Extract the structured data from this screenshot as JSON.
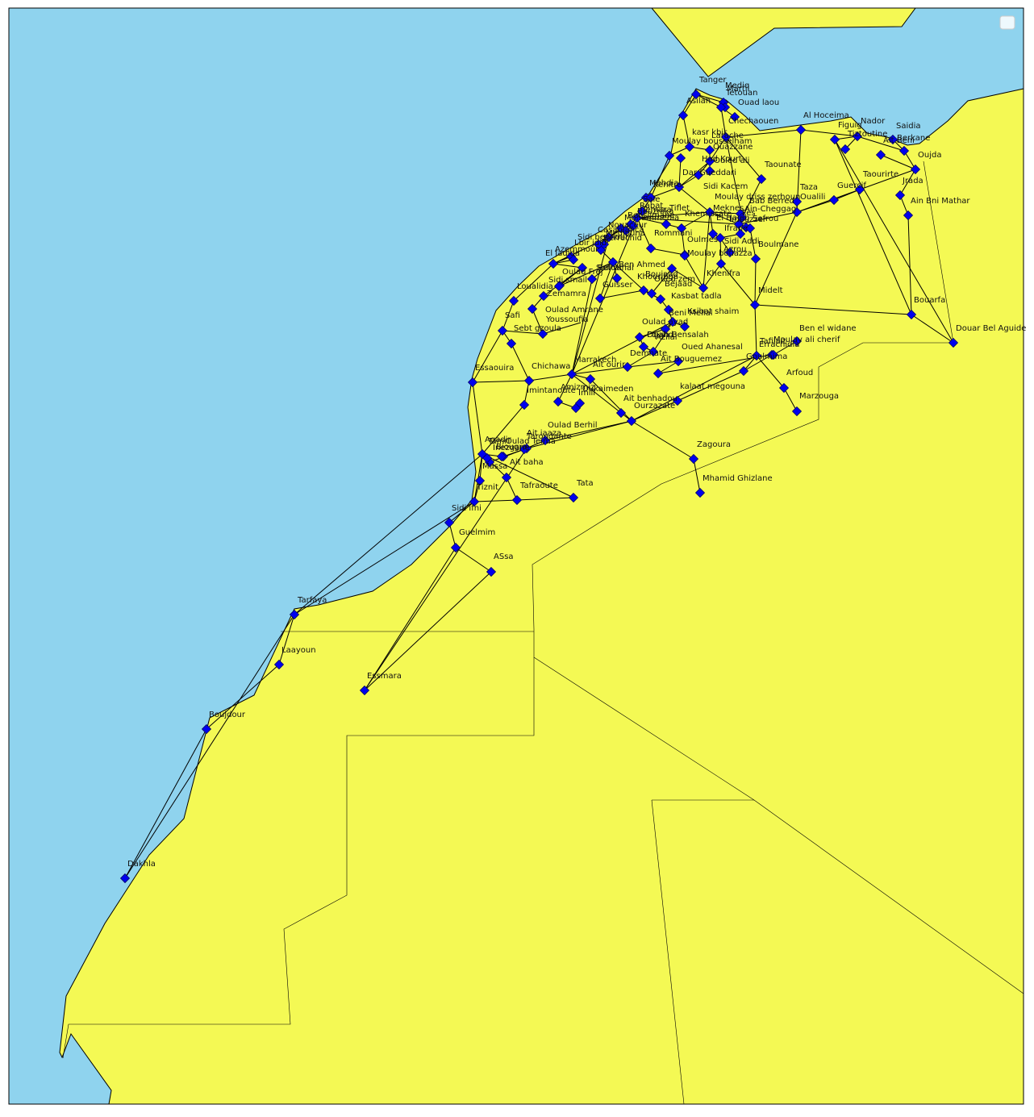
{
  "colors": {
    "sea": "#8fd3ee",
    "land": "#f4f954",
    "route": "#000000",
    "marker_fill": "#0000ee",
    "marker_stroke": "#000066",
    "border": "#000000"
  },
  "legend": {
    "visible": true,
    "entries": []
  },
  "cities": [
    {
      "id": "tanger",
      "name": "Tanger"
    },
    {
      "id": "mdiq",
      "name": "Mediq"
    },
    {
      "id": "martil",
      "name": "Martil"
    },
    {
      "id": "tetouan",
      "name": "Tetouan"
    },
    {
      "id": "asilah",
      "name": "Asilah"
    },
    {
      "id": "ouadlaou",
      "name": "Ouad laou"
    },
    {
      "id": "chefchaouen",
      "name": "Chechaouen"
    },
    {
      "id": "alhoceima",
      "name": "Al Hoceima"
    },
    {
      "id": "nador",
      "name": "Nador"
    },
    {
      "id": "figuig",
      "name": "Figuig"
    },
    {
      "id": "tiztoutine",
      "name": "Tiztoutine"
    },
    {
      "id": "saidia",
      "name": "Saidia"
    },
    {
      "id": "berkane",
      "name": "Berkane"
    },
    {
      "id": "aitbeni",
      "name": "Ait Beni"
    },
    {
      "id": "oujda",
      "name": "Oujda"
    },
    {
      "id": "ksarkbir",
      "name": "kasr kbir"
    },
    {
      "id": "larache",
      "name": "Larache"
    },
    {
      "id": "moulaybousselham",
      "name": "Moulay bousselham"
    },
    {
      "id": "ouazzane",
      "name": "Ouazzane"
    },
    {
      "id": "jorfmelha",
      "name": "Had Kourt"
    },
    {
      "id": "ouldali",
      "name": "Ouled ali"
    },
    {
      "id": "darbelamri",
      "name": "Dar Gueddari"
    },
    {
      "id": "taounate",
      "name": "Taounate"
    },
    {
      "id": "taourirt",
      "name": "Taourirte"
    },
    {
      "id": "jerada",
      "name": "Jrada"
    },
    {
      "id": "mehdia",
      "name": "Mehdia"
    },
    {
      "id": "kenitra",
      "name": "Kenitra"
    },
    {
      "id": "sidikacem",
      "name": "Sidi Kacem"
    },
    {
      "id": "taza",
      "name": "Taza"
    },
    {
      "id": "guercif",
      "name": "Guercif"
    },
    {
      "id": "ainbnimathar",
      "name": "Ain Bni Mathar"
    },
    {
      "id": "oualili",
      "name": "Oualili"
    },
    {
      "id": "moulayidriss",
      "name": "Moulay driss zerhoun"
    },
    {
      "id": "babberred",
      "name": "Bab Berred"
    },
    {
      "id": "sale",
      "name": "Sale"
    },
    {
      "id": "rabat",
      "name": "Rabat"
    },
    {
      "id": "temara",
      "name": "Temara"
    },
    {
      "id": "tiflet",
      "name": "Tiflet"
    },
    {
      "id": "meknes",
      "name": "Meknes"
    },
    {
      "id": "aincheggag",
      "name": "Ain-Cheggag"
    },
    {
      "id": "fes",
      "name": "Fes"
    },
    {
      "id": "khemisset",
      "name": "Khemissate"
    },
    {
      "id": "elhajeb",
      "name": "El Hajeb"
    },
    {
      "id": "sefrou",
      "name": "Sefrou"
    },
    {
      "id": "imouzzer",
      "name": "Imouzzer"
    },
    {
      "id": "ifrane",
      "name": "Ifrane"
    },
    {
      "id": "rommani",
      "name": "Rommani"
    },
    {
      "id": "mohammedia",
      "name": "Mohammedia"
    },
    {
      "id": "casablanca",
      "name": "Casablanca"
    },
    {
      "id": "benslimane",
      "name": "Benslimane"
    },
    {
      "id": "bouznika",
      "name": "Bouznika"
    },
    {
      "id": "berrechid",
      "name": "Berrechid"
    },
    {
      "id": "mediouna",
      "name": "Mediouna"
    },
    {
      "id": "nouaceur",
      "name": "Nouaceur"
    },
    {
      "id": "lbir",
      "name": "Lbir jdid"
    },
    {
      "id": "azemmour",
      "name": "Azemmour"
    },
    {
      "id": "eljadida",
      "name": "El Jadida"
    },
    {
      "id": "sidibennour",
      "name": "Sidi bennour"
    },
    {
      "id": "ouladfrej",
      "name": "Oulad Frej"
    },
    {
      "id": "settat",
      "name": "Settat"
    },
    {
      "id": "benahmed",
      "name": "Ben Ahmed"
    },
    {
      "id": "sidirahal",
      "name": "Sidi rahal"
    },
    {
      "id": "oulmes",
      "name": "Oulmes"
    },
    {
      "id": "sidiaddi",
      "name": "Sidi Addi"
    },
    {
      "id": "azrou",
      "name": "Azrou"
    },
    {
      "id": "boulmane",
      "name": "Boulmane"
    },
    {
      "id": "moulayboua",
      "name": "Moulay bouazza"
    },
    {
      "id": "khenifra",
      "name": "Khenifra"
    },
    {
      "id": "khouribga",
      "name": "Khouribga"
    },
    {
      "id": "boujaad",
      "name": "Boujaad"
    },
    {
      "id": "oudzem",
      "name": "Oued zem"
    },
    {
      "id": "bejaad",
      "name": "Bejaad"
    },
    {
      "id": "guisser",
      "name": "Guisser"
    },
    {
      "id": "sidismail",
      "name": "Sidi smail"
    },
    {
      "id": "loualidia",
      "name": "Loualidia"
    },
    {
      "id": "zemamra",
      "name": "Zemamra"
    },
    {
      "id": "kasbattadla",
      "name": "Kasbat tadla"
    },
    {
      "id": "benimellal",
      "name": "Beni Mellal"
    },
    {
      "id": "ksibatchaim",
      "name": "Ksibat shaim"
    },
    {
      "id": "midelt",
      "name": "Midelt"
    },
    {
      "id": "bouarfa",
      "name": "Bouarfa"
    },
    {
      "id": "oualdamrane",
      "name": "Oulad Amrane"
    },
    {
      "id": "youssoufia",
      "name": "Youssoufia"
    },
    {
      "id": "safi",
      "name": "Safi"
    },
    {
      "id": "sebtgzoula",
      "name": "Sebt gzoula"
    },
    {
      "id": "ouladayad",
      "name": "Oulad ayad"
    },
    {
      "id": "fquihbensalah",
      "name": "Fquih Bensalah"
    },
    {
      "id": "azilal",
      "name": "Azilal"
    },
    {
      "id": "oued",
      "name": "Ouahd"
    },
    {
      "id": "demnate",
      "name": "Demnate"
    },
    {
      "id": "ouedahansal",
      "name": "Oued Ahanesal"
    },
    {
      "id": "aitbouguemez",
      "name": "Ait Bouguemez"
    },
    {
      "id": "bendidane",
      "name": "Ben el widane"
    },
    {
      "id": "tafilalt",
      "name": "Tafilalt"
    },
    {
      "id": "moulayalicherif",
      "name": "Moulay ali cherif"
    },
    {
      "id": "douarbelaguide",
      "name": "Douar Bel Aguide"
    },
    {
      "id": "goulmima",
      "name": "Goulmima"
    },
    {
      "id": "arfoud",
      "name": "Arfoud"
    },
    {
      "id": "errachidia",
      "name": "Errachidia"
    },
    {
      "id": "merzouga",
      "name": "Marzouga"
    },
    {
      "id": "essaouira",
      "name": "Essaouira"
    },
    {
      "id": "chichaoua",
      "name": "Chichawa"
    },
    {
      "id": "marrakech",
      "name": "Marrakech"
    },
    {
      "id": "aitourir",
      "name": "Ait ourir"
    },
    {
      "id": "amizmiz",
      "name": "Amizmiz"
    },
    {
      "id": "oukaimeden",
      "name": "Oukaimeden"
    },
    {
      "id": "imlil",
      "name": "Imlil"
    },
    {
      "id": "imintanoute",
      "name": "Imintanoute"
    },
    {
      "id": "kalaatmgouna",
      "name": "kalaat megouna"
    },
    {
      "id": "aitbenhaddou",
      "name": "Ait benhadou"
    },
    {
      "id": "ouarzazate",
      "name": "Ourzazate"
    },
    {
      "id": "zagora",
      "name": "Zagoura"
    },
    {
      "id": "mhamidghizlane",
      "name": "Mhamid Ghizlane"
    },
    {
      "id": "ouladberhil",
      "name": "Oulad Berhil"
    },
    {
      "id": "taroudant",
      "name": "Taroudante"
    },
    {
      "id": "aitiaaza",
      "name": "Ait iaaza"
    },
    {
      "id": "ouladteima",
      "name": "Oulad Teima"
    },
    {
      "id": "agadir",
      "name": "Agadir"
    },
    {
      "id": "inezgane",
      "name": "Inezgane"
    },
    {
      "id": "tamri",
      "name": "Tamri"
    },
    {
      "id": "biougra",
      "name": "Biougra"
    },
    {
      "id": "aitbaha",
      "name": "Ait baha"
    },
    {
      "id": "massa",
      "name": "Massa"
    },
    {
      "id": "tiznit",
      "name": "Tiznit"
    },
    {
      "id": "tafraoute",
      "name": "Tafraoute"
    },
    {
      "id": "tata",
      "name": "Tata"
    },
    {
      "id": "sidiifni",
      "name": "Sidi ifni"
    },
    {
      "id": "guelmim",
      "name": "Guelmim"
    },
    {
      "id": "assa",
      "name": "ASsa"
    },
    {
      "id": "tarfaya",
      "name": "Tarfaya"
    },
    {
      "id": "laayoune",
      "name": "Laayoun"
    },
    {
      "id": "essmara",
      "name": "Essmara"
    },
    {
      "id": "boujdour",
      "name": "Boujdour"
    },
    {
      "id": "dakhla",
      "name": "Dakhla"
    }
  ],
  "routes": [
    [
      "tanger",
      "asilah"
    ],
    [
      "tanger",
      "tetouan"
    ],
    [
      "tanger",
      "mdiq"
    ],
    [
      "tetouan",
      "chefchaouen"
    ],
    [
      "tetouan",
      "ouadlaou"
    ],
    [
      "mdiq",
      "martil"
    ],
    [
      "asilah",
      "larache"
    ],
    [
      "larache",
      "ksarkbir"
    ],
    [
      "ksarkbir",
      "ouazzane"
    ],
    [
      "chefchaouen",
      "ouazzane"
    ],
    [
      "chefchaouen",
      "alhoceima"
    ],
    [
      "alhoceima",
      "nador"
    ],
    [
      "alhoceima",
      "taza"
    ],
    [
      "nador",
      "berkane"
    ],
    [
      "nador",
      "figuig"
    ],
    [
      "nador",
      "tiztoutine"
    ],
    [
      "berkane",
      "saidia"
    ],
    [
      "berkane",
      "oujda"
    ],
    [
      "aitbeni",
      "oujda"
    ],
    [
      "oujda",
      "jerada"
    ],
    [
      "oujda",
      "taourirt"
    ],
    [
      "taourirt",
      "guercif"
    ],
    [
      "guercif",
      "taza"
    ],
    [
      "taza",
      "fes"
    ],
    [
      "taza",
      "oualili"
    ],
    [
      "jerada",
      "ainbnimathar"
    ],
    [
      "ainbnimathar",
      "bouarfa"
    ],
    [
      "bouarfa",
      "figuig"
    ],
    [
      "bouarfa",
      "midelt"
    ],
    [
      "bouarfa",
      "douarbelaguide"
    ],
    [
      "larache",
      "moulaybousselham"
    ],
    [
      "moulaybousselham",
      "kenitra"
    ],
    [
      "ouazzane",
      "sidikacem"
    ],
    [
      "ouazzane",
      "darbelamri"
    ],
    [
      "darbelamri",
      "sidikacem"
    ],
    [
      "sidikacem",
      "meknes"
    ],
    [
      "sidikacem",
      "kenitra"
    ],
    [
      "kenitra",
      "sale"
    ],
    [
      "kenitra",
      "mehdia"
    ],
    [
      "sale",
      "rabat"
    ],
    [
      "rabat",
      "temara"
    ],
    [
      "rabat",
      "tiflet"
    ],
    [
      "tiflet",
      "khemisset"
    ],
    [
      "khemisset",
      "meknes"
    ],
    [
      "meknes",
      "fes"
    ],
    [
      "fes",
      "sefrou"
    ],
    [
      "fes",
      "taounate"
    ],
    [
      "taounate",
      "chefchaouen"
    ],
    [
      "meknes",
      "elhajeb"
    ],
    [
      "elhajeb",
      "ifrane"
    ],
    [
      "ifrane",
      "azrou"
    ],
    [
      "azrou",
      "khenifra"
    ],
    [
      "azrou",
      "midelt"
    ],
    [
      "sefrou",
      "boulmane"
    ],
    [
      "boulmane",
      "midelt"
    ],
    [
      "midelt",
      "errachidia"
    ],
    [
      "errachidia",
      "arfoud"
    ],
    [
      "arfoud",
      "merzouga"
    ],
    [
      "errachidia",
      "goulmima"
    ],
    [
      "goulmima",
      "tafilalt"
    ],
    [
      "tafilalt",
      "moulayalicherif"
    ],
    [
      "moulayalicherif",
      "bendidane"
    ],
    [
      "errachidia",
      "ouarzazate"
    ],
    [
      "temara",
      "casablanca"
    ],
    [
      "casablanca",
      "mohammedia"
    ],
    [
      "mohammedia",
      "benslimane"
    ],
    [
      "casablanca",
      "berrechid"
    ],
    [
      "berrechid",
      "settat"
    ],
    [
      "settat",
      "benahmed"
    ],
    [
      "settat",
      "khouribga"
    ],
    [
      "khouribga",
      "oudzem"
    ],
    [
      "oudzem",
      "boujaad"
    ],
    [
      "boujaad",
      "khenifra"
    ],
    [
      "khouribga",
      "bejaad"
    ],
    [
      "bejaad",
      "kasbattadla"
    ],
    [
      "kasbattadla",
      "benimellal"
    ],
    [
      "benimellal",
      "ksibatchaim"
    ],
    [
      "benimellal",
      "azilal"
    ],
    [
      "azilal",
      "demnate"
    ],
    [
      "demnate",
      "marrakech"
    ],
    [
      "casablanca",
      "eljadida"
    ],
    [
      "eljadida",
      "azemmour"
    ],
    [
      "eljadida",
      "sidibennour"
    ],
    [
      "sidibennour",
      "ouladfrej"
    ],
    [
      "eljadida",
      "loualidia"
    ],
    [
      "loualidia",
      "safi"
    ],
    [
      "safi",
      "youssoufia"
    ],
    [
      "youssoufia",
      "benguerir"
    ],
    [
      "safi",
      "essaouira"
    ],
    [
      "essaouira",
      "agadir"
    ],
    [
      "agadir",
      "inezgane"
    ],
    [
      "inezgane",
      "taroudant"
    ],
    [
      "taroudant",
      "ouarzazate"
    ],
    [
      "ouarzazate",
      "zagora"
    ],
    [
      "zagora",
      "mhamidghizlane"
    ],
    [
      "ouarzazate",
      "kalaatmgouna"
    ],
    [
      "kalaatmgouna",
      "goulmima"
    ],
    [
      "marrakech",
      "chichaoua"
    ],
    [
      "chichaoua",
      "essaouira"
    ],
    [
      "marrakech",
      "aitourir"
    ],
    [
      "aitourir",
      "ouarzazate"
    ],
    [
      "marrakech",
      "amizmiz"
    ],
    [
      "amizmiz",
      "imlil"
    ],
    [
      "imlil",
      "oukaimeden"
    ],
    [
      "chichaoua",
      "imintanoute"
    ],
    [
      "imintanoute",
      "agadir"
    ],
    [
      "agadir",
      "tiznit"
    ],
    [
      "tiznit",
      "sidiifni"
    ],
    [
      "sidiifni",
      "guelmim"
    ],
    [
      "guelmim",
      "tantan"
    ],
    [
      "tiznit",
      "tafraoute"
    ],
    [
      "tafraoute",
      "tata"
    ],
    [
      "tata",
      "agadir"
    ],
    [
      "guelmim",
      "assa"
    ],
    [
      "agadir",
      "tarfaya"
    ],
    [
      "tarfaya",
      "laayoune"
    ],
    [
      "laayoune",
      "boujdour"
    ],
    [
      "boujdour",
      "dakhla"
    ],
    [
      "dakhla",
      "tarfaya"
    ],
    [
      "essmara",
      "taroudant"
    ],
    [
      "essmara",
      "assa"
    ],
    [
      "marrakech",
      "benimellal"
    ],
    [
      "marrakech",
      "rabat"
    ],
    [
      "fes",
      "rabat"
    ],
    [
      "meknes",
      "rabat"
    ],
    [
      "casablanca",
      "marrakech"
    ],
    [
      "khenifra",
      "meknes"
    ],
    [
      "oulmes",
      "khemisset"
    ],
    [
      "oulmes",
      "rommani"
    ],
    [
      "rommani",
      "rabat"
    ],
    [
      "taza",
      "taourirt"
    ],
    [
      "taza",
      "midelt"
    ],
    [
      "figuig",
      "douarbelaguide"
    ],
    [
      "ouarzazate",
      "aitbenhaddou"
    ],
    [
      "aitbenhaddou",
      "marrakech"
    ],
    [
      "demnate",
      "aitbouguemez"
    ],
    [
      "aitbouguemez",
      "ouedahansal"
    ],
    [
      "ouedahansal",
      "tafilalt"
    ],
    [
      "agadir",
      "aitbaha"
    ],
    [
      "aitbaha",
      "tafraoute"
    ],
    [
      "agadir",
      "massa"
    ],
    [
      "massa",
      "tiznit"
    ],
    [
      "taroudant",
      "aitiaaza"
    ],
    [
      "aitiaaza",
      "ouladberhil"
    ],
    [
      "ouladberhil",
      "ouarzazate"
    ],
    [
      "agadir",
      "tamri"
    ],
    [
      "agadir",
      "biougra"
    ],
    [
      "biougra",
      "ouladteima"
    ],
    [
      "ouladteima",
      "taroudant"
    ],
    [
      "safi",
      "sebtgzoula"
    ],
    [
      "sebtgzoula",
      "chichaoua"
    ],
    [
      "youssoufia",
      "oualdamrane"
    ],
    [
      "oualdamrane",
      "zemamra"
    ],
    [
      "zemamra",
      "sidibennour"
    ],
    [
      "settat",
      "guisser"
    ],
    [
      "guisser",
      "khouribga"
    ],
    [
      "benimellal",
      "fquihbensalah"
    ],
    [
      "fquihbensalah",
      "ouladayad"
    ],
    [
      "ouladayad",
      "oued"
    ],
    [
      "oued",
      "azilal"
    ],
    [
      "sidismail",
      "settat"
    ],
    [
      "sidismail",
      "sidibennour"
    ],
    [
      "sidirahal",
      "marrakech"
    ],
    [
      "sidirahal",
      "settat"
    ],
    [
      "moulayboua",
      "khenifra"
    ],
    [
      "moulayboua",
      "oulmes"
    ],
    [
      "sidiaddi",
      "ifrane"
    ],
    [
      "imouzzer",
      "fes"
    ],
    [
      "imouzzer",
      "ifrane"
    ],
    [
      "aincheggag",
      "fes"
    ],
    [
      "babberred",
      "chefchaouen"
    ],
    [
      "moulayidriss",
      "meknes"
    ],
    [
      "ouldali",
      "ouazzane"
    ],
    [
      "jorfmelha",
      "sidikacem"
    ],
    [
      "lbir",
      "eljadida"
    ],
    [
      "nouaceur",
      "casablanca"
    ],
    [
      "mediouna",
      "casablanca"
    ],
    [
      "bouznika",
      "benslimane"
    ],
    [
      "essmara",
      "guelmim"
    ],
    [
      "tarfaya",
      "tiznit"
    ]
  ]
}
